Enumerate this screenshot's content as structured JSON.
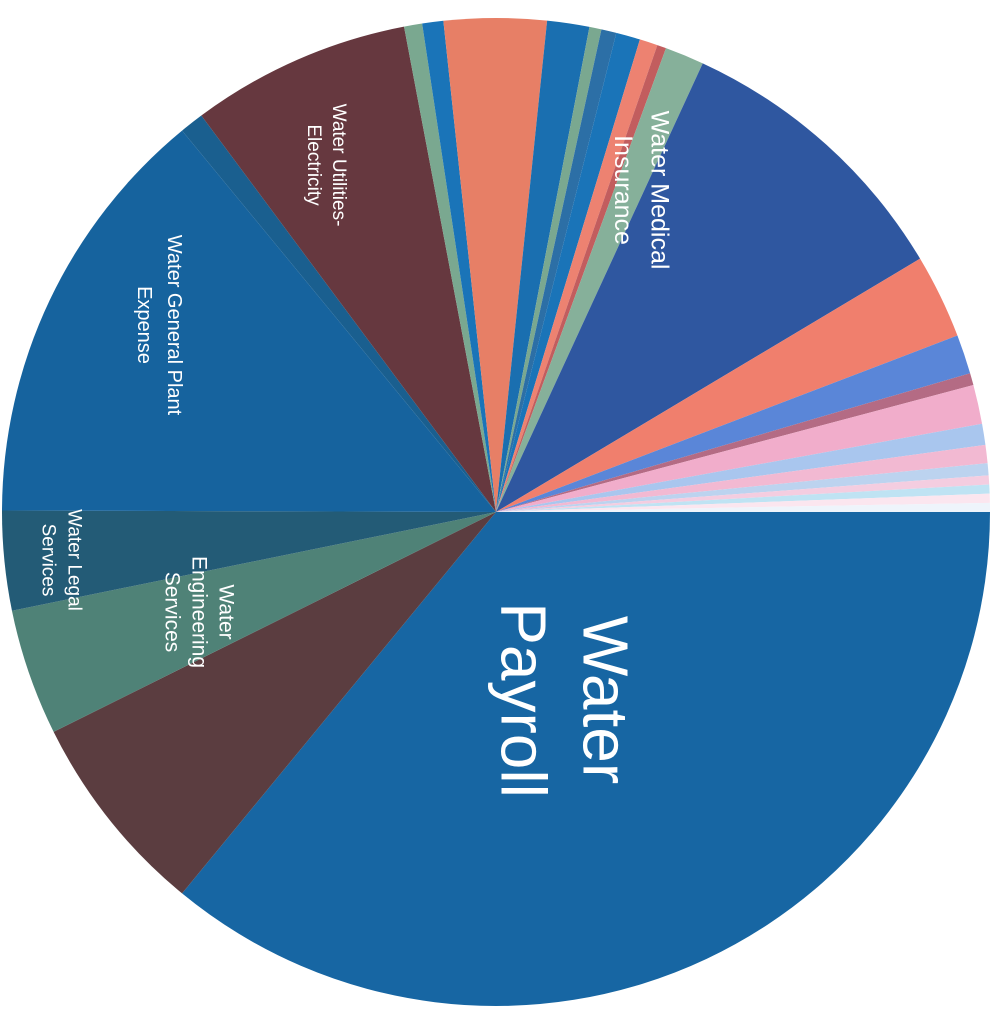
{
  "chart_data": {
    "type": "pie",
    "title": "",
    "slices": [
      {
        "label": "Water Payroll",
        "value": 36.5,
        "color": "#1766a3",
        "show_label": true
      },
      {
        "label": "",
        "value": 6.8,
        "color": "#5b3d40",
        "show_label": false
      },
      {
        "label": "Water Engineering Services",
        "value": 0,
        "color": "#5b3d40",
        "show_label": true
      },
      {
        "label": "Water Legal Services",
        "value": 4.2,
        "color": "#4f8277",
        "show_label": true
      },
      {
        "label": "",
        "value": 3.3,
        "color": "#235b76",
        "show_label": false
      },
      {
        "label": "Water General Plant Expense",
        "value": 14.2,
        "color": "#16639e",
        "show_label": true
      },
      {
        "label": "",
        "value": 0.8,
        "color": "#1a5f8f",
        "show_label": false
      },
      {
        "label": "Water Utilities-Electricity",
        "value": 7.3,
        "color": "#66383f",
        "show_label": true
      },
      {
        "label": "",
        "value": 0.6,
        "color": "#7aa890",
        "show_label": false
      },
      {
        "label": "",
        "value": 0.7,
        "color": "#1a74b8",
        "show_label": false
      },
      {
        "label": "",
        "value": 3.4,
        "color": "#e77f66",
        "show_label": false
      },
      {
        "label": "",
        "value": 1.4,
        "color": "#1a6fb0",
        "show_label": false
      },
      {
        "label": "",
        "value": 0.4,
        "color": "#7aa890",
        "show_label": false
      },
      {
        "label": "",
        "value": 0.5,
        "color": "#2c6fa6",
        "show_label": false
      },
      {
        "label": "",
        "value": 0.8,
        "color": "#1a74b8",
        "show_label": false
      },
      {
        "label": "",
        "value": 0.6,
        "color": "#ed8271",
        "show_label": false
      },
      {
        "label": "",
        "value": 0.3,
        "color": "#c25d5e",
        "show_label": false
      },
      {
        "label": "",
        "value": 1.3,
        "color": "#86b09a",
        "show_label": false
      },
      {
        "label": "Water Medical Insurance",
        "value": 9.7,
        "color": "#2f57a0",
        "show_label": true
      },
      {
        "label": "",
        "value": 2.8,
        "color": "#f07f6d",
        "show_label": false
      },
      {
        "label": "",
        "value": 1.3,
        "color": "#5a86d8",
        "show_label": false
      },
      {
        "label": "",
        "value": 0.4,
        "color": "#b46b84",
        "show_label": false
      },
      {
        "label": "",
        "value": 1.3,
        "color": "#f1adcb",
        "show_label": false
      },
      {
        "label": "",
        "value": 0.7,
        "color": "#a9c6ee",
        "show_label": false
      },
      {
        "label": "",
        "value": 0.6,
        "color": "#f2b9d2",
        "show_label": false
      },
      {
        "label": "",
        "value": 0.4,
        "color": "#bcd3ef",
        "show_label": false
      },
      {
        "label": "",
        "value": 0.3,
        "color": "#f4cde0",
        "show_label": false
      },
      {
        "label": "",
        "value": 0.3,
        "color": "#bfe3f3",
        "show_label": false
      },
      {
        "label": "",
        "value": 0.3,
        "color": "#fbe6ef",
        "show_label": false
      },
      {
        "label": "",
        "value": 0.3,
        "color": "#eef4fb",
        "show_label": false
      }
    ],
    "label_lines": {
      "Water Payroll": [
        "Water",
        "Payroll"
      ],
      "Water Engineering Services": [
        "Water",
        "Engineering",
        "Services"
      ],
      "Water Legal Services": [
        "Water Legal",
        "Services"
      ],
      "Water General Plant Expense": [
        "Water General Plant",
        "Expense"
      ],
      "Water Utilities-Electricity": [
        "Water Utilities-",
        "Electricity"
      ],
      "Water Medical Insurance": [
        "Water Medical",
        "Insurance"
      ]
    },
    "legend": "none",
    "orientation": "rotated 90 degrees clockwise"
  }
}
